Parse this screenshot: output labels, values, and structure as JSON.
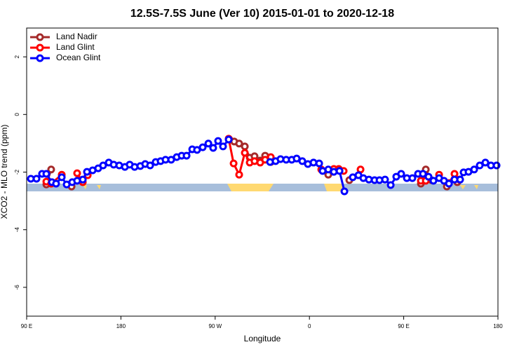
{
  "chart_data": {
    "type": "line",
    "title": "12.5S-7.5S June (Ver 10)   2015-01-01 to 2020-12-18",
    "x_label": "Longitude",
    "y_label": "XCO2 - MLO trend (ppm)",
    "xlim": [
      90,
      540
    ],
    "xticks": [
      {
        "value": 90,
        "label": "90 E"
      },
      180,
      {
        "value": 270,
        "label": "90 W"
      },
      {
        "value": 360,
        "label": "0"
      },
      {
        "value": 450,
        "label": "90 E"
      },
      {
        "value": 540,
        "label": "180"
      }
    ],
    "ylim": [
      -7,
      3
    ],
    "yticks": [
      2,
      0,
      -2,
      -4,
      -6
    ],
    "legend": "top-left",
    "series": [
      {
        "name": "Land Nadir",
        "color": "#a52a2a",
        "x": [
          108.8,
          113.4,
          null,
          132.9,
          null,
          283.5,
          288.2,
          292.9,
          298.3,
          303.0,
          307.6,
          313.0,
          317.7,
          323.1,
          null,
          378.0,
          null,
          398.1,
          null,
          466.4,
          471.1,
          476.4,
          null,
          491.2,
          null,
          501.2
        ],
        "values": [
          -2.43,
          -1.91,
          null,
          -2.5,
          null,
          -0.87,
          -0.94,
          -1.01,
          -1.11,
          -1.5,
          -1.45,
          -1.6,
          -1.43,
          -1.65,
          null,
          -2.09,
          null,
          -2.28,
          null,
          -2.4,
          -1.91,
          -2.28,
          null,
          -2.5,
          null,
          -2.35
        ]
      },
      {
        "name": "Land Glint",
        "color": "#ff0000",
        "x": [
          108.8,
          113.4,
          123.5,
          null,
          138.2,
          143.6,
          148.3,
          null,
          282.9,
          287.6,
          292.9,
          298.3,
          303.0,
          307.6,
          313.0,
          317.7,
          323.1,
          null,
          371.3,
          null,
          383.3,
          388.0,
          392.7,
          null,
          408.8,
          null,
          466.4,
          471.1,
          null,
          483.8,
          null,
          493.2,
          498.5,
          503.2
        ],
        "values": [
          -2.33,
          -2.4,
          -2.09,
          null,
          -2.04,
          -2.35,
          -2.11,
          null,
          -0.84,
          -1.7,
          -2.09,
          -1.33,
          -1.67,
          -1.62,
          -1.67,
          -1.57,
          -1.48,
          null,
          -1.91,
          null,
          -1.89,
          -1.89,
          -1.96,
          null,
          -1.91,
          null,
          -2.3,
          -2.3,
          null,
          -2.09,
          null,
          -2.38,
          -2.06,
          -2.26
        ]
      },
      {
        "name": "Ocean Glint",
        "color": "#0000ff",
        "x": [
          94.0,
          99.4,
          104.7,
          108.8,
          114.1,
          118.1,
          123.5,
          128.2,
          133.5,
          138.2,
          143.6,
          147.6,
          153.0,
          158.3,
          163.0,
          168.4,
          173.1,
          178.4,
          183.8,
          188.4,
          193.1,
          198.5,
          203.2,
          207.9,
          213.2,
          217.9,
          222.6,
          228.0,
          233.3,
          238.0,
          242.7,
          248.1,
          252.7,
          258.1,
          263.5,
          268.1,
          272.8,
          277.5,
          282.9,
          null,
          322.4,
          327.7,
          332.4,
          337.8,
          343.1,
          347.8,
          353.2,
          358.5,
          363.9,
          369.3,
          372.6,
          378.0,
          383.3,
          388.7,
          393.4,
          null,
          401.4,
          406.8,
          411.5,
          416.8,
          422.2,
          426.9,
          432.2,
          437.6,
          442.9,
          447.6,
          453.0,
          458.3,
          463.7,
          468.4,
          473.7,
          478.4,
          483.8,
          488.5,
          493.2,
          498.5,
          503.9,
          507.2,
          511.9,
          517.3,
          522.6,
          528.0,
          533.3,
          538.7
        ],
        "values": [
          -2.23,
          -2.23,
          -2.06,
          -2.06,
          -2.35,
          -2.4,
          -2.18,
          -2.43,
          -2.35,
          -2.3,
          -2.26,
          -1.99,
          -1.94,
          -1.87,
          -1.77,
          -1.67,
          -1.74,
          -1.77,
          -1.82,
          -1.74,
          -1.82,
          -1.79,
          -1.72,
          -1.77,
          -1.65,
          -1.62,
          -1.57,
          -1.57,
          -1.48,
          -1.43,
          -1.43,
          -1.21,
          -1.23,
          -1.14,
          -1.01,
          -1.16,
          -0.92,
          -1.11,
          -0.87,
          null,
          -1.65,
          -1.62,
          -1.55,
          -1.57,
          -1.57,
          -1.53,
          -1.62,
          -1.72,
          -1.67,
          -1.7,
          -1.96,
          -1.91,
          -1.99,
          -1.96,
          -2.67,
          null,
          -2.18,
          -2.11,
          -2.21,
          -2.26,
          -2.28,
          -2.28,
          -2.26,
          -2.45,
          -2.16,
          -2.06,
          -2.21,
          -2.21,
          -2.06,
          -2.06,
          -2.16,
          -2.3,
          -2.21,
          -2.3,
          -2.4,
          -2.26,
          -2.26,
          -2.01,
          -1.99,
          -1.91,
          -1.77,
          -1.67,
          -1.77,
          -1.77
        ]
      }
    ]
  }
}
